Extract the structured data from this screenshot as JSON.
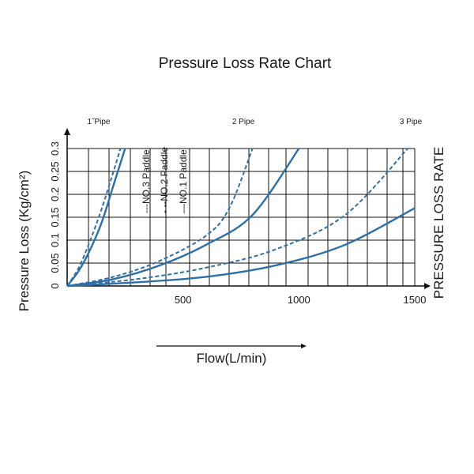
{
  "chart_data": {
    "type": "line",
    "title": "Pressure Loss Rate Chart",
    "xlabel": "Flow(L/min)",
    "ylabel": "Pressure Loss  (Kg/cm²)",
    "right_label": "PRESSURE LOSS RATE",
    "xlim": [
      0,
      1500
    ],
    "ylim": [
      0,
      0.3
    ],
    "x_ticks": [
      "500",
      "1000",
      "1500"
    ],
    "y_ticks": [
      "0",
      "0.05",
      "0.1",
      "0.15",
      "0.2",
      "0.25",
      "0.3"
    ],
    "grid": true,
    "pipe_labels": [
      "1˝Pipe",
      "2 Pipe",
      "3 Pipe"
    ],
    "legend": [
      {
        "label": "---NO.3  Paddle",
        "style": "dash-dot"
      },
      {
        "label": "- --NO.2  Paddle",
        "style": "dashed"
      },
      {
        "label": "—NO.1  Paddle",
        "style": "solid"
      }
    ],
    "line_color": "#2f6fa7",
    "series": [
      {
        "group": "1\" Pipe",
        "style": "solid",
        "x": [
          0,
          50,
          100,
          150,
          200,
          250
        ],
        "y": [
          0,
          0.033,
          0.08,
          0.14,
          0.22,
          0.3
        ]
      },
      {
        "group": "1\" Pipe",
        "style": "dashed",
        "x": [
          0,
          50,
          100,
          150,
          200,
          230
        ],
        "y": [
          0,
          0.04,
          0.1,
          0.17,
          0.25,
          0.3
        ]
      },
      {
        "group": "2 Pipe",
        "style": "solid",
        "x": [
          0,
          200,
          400,
          600,
          800,
          1000
        ],
        "y": [
          0,
          0.015,
          0.045,
          0.09,
          0.155,
          0.3
        ]
      },
      {
        "group": "2 Pipe",
        "style": "dashed",
        "x": [
          0,
          200,
          400,
          600,
          700,
          800
        ],
        "y": [
          0,
          0.02,
          0.055,
          0.11,
          0.17,
          0.3
        ]
      },
      {
        "group": "3 Pipe",
        "style": "solid",
        "x": [
          0,
          300,
          600,
          900,
          1200,
          1500
        ],
        "y": [
          0,
          0.008,
          0.02,
          0.045,
          0.09,
          0.17
        ]
      },
      {
        "group": "3 Pipe",
        "style": "dashed",
        "x": [
          0,
          300,
          600,
          900,
          1200,
          1470
        ],
        "y": [
          0,
          0.015,
          0.04,
          0.08,
          0.155,
          0.3
        ]
      }
    ]
  }
}
